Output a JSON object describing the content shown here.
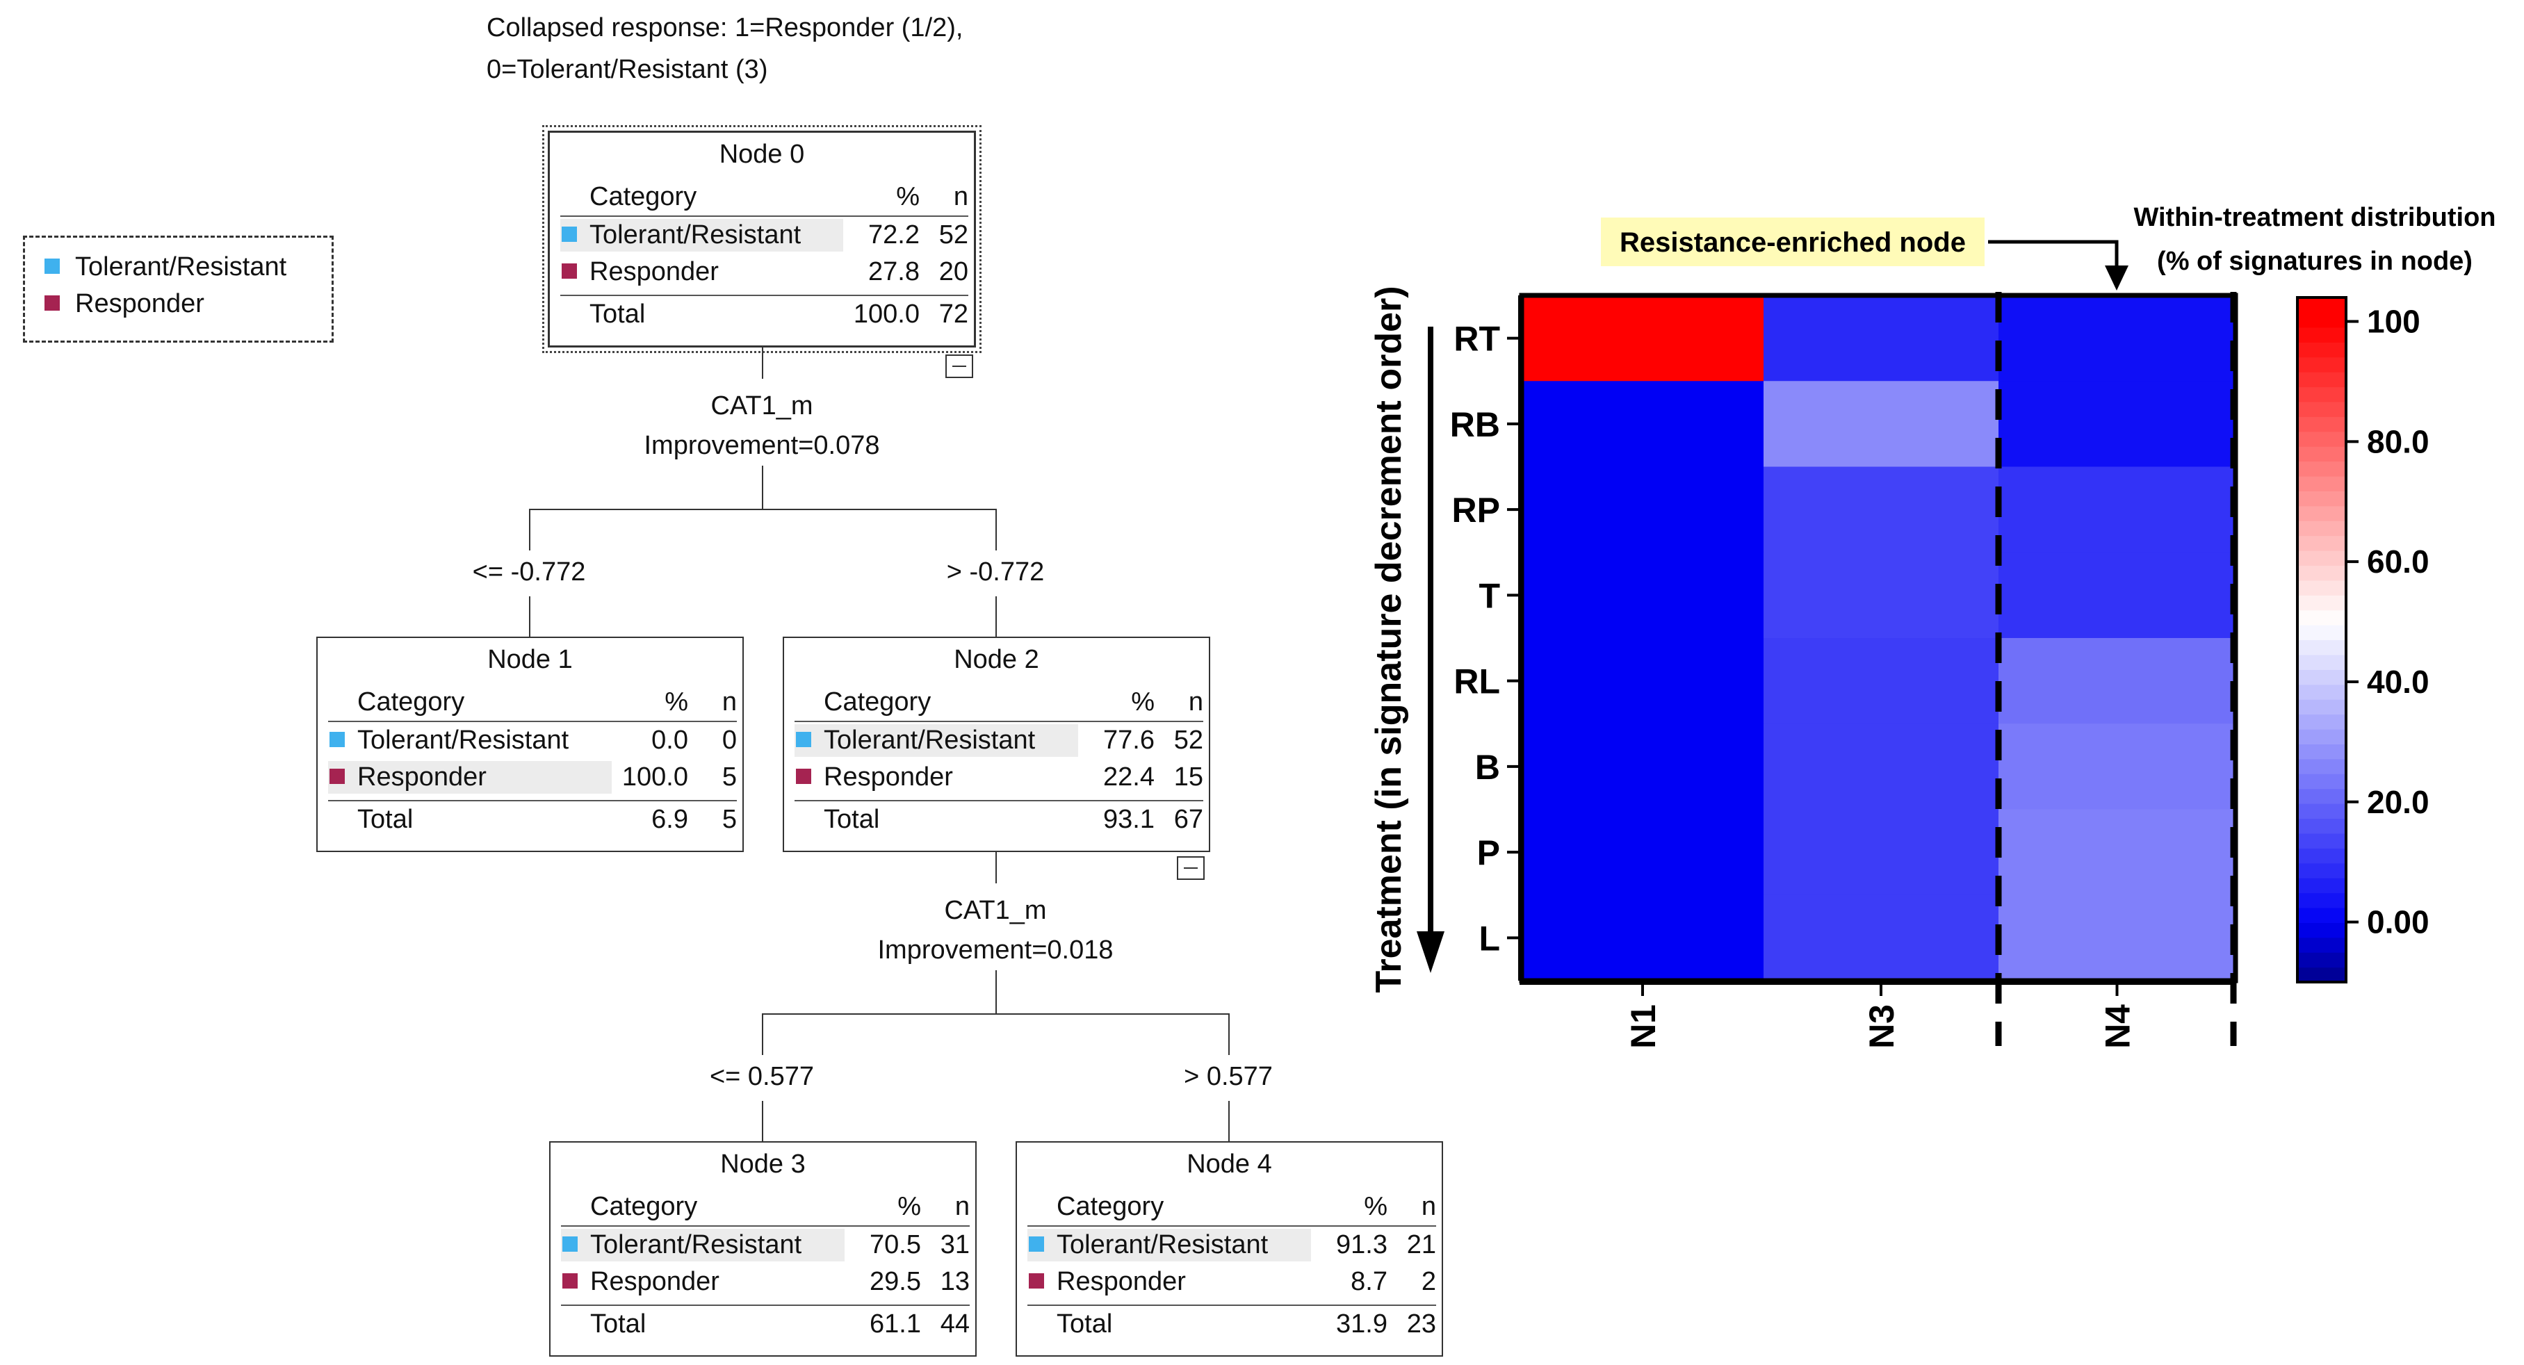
{
  "header": {
    "line1": "Collapsed response: 1=Responder (1/2),",
    "line2": "0=Tolerant/Resistant (3)"
  },
  "legend": {
    "items": [
      {
        "label": "Tolerant/Resistant",
        "color": "#3fb1ee"
      },
      {
        "label": "Responder",
        "color": "#a52351"
      }
    ]
  },
  "tree": {
    "column_headers": {
      "category": "Category",
      "pct": "%",
      "n": "n"
    },
    "nodes": [
      {
        "title": "Node 0",
        "rows": [
          {
            "label": "Tolerant/Resistant",
            "pct": "72.2",
            "n": "52"
          },
          {
            "label": "Responder",
            "pct": "27.8",
            "n": "20"
          },
          {
            "label": "Total",
            "pct": "100.0",
            "n": "72"
          }
        ]
      },
      {
        "title": "Node 1",
        "rows": [
          {
            "label": "Tolerant/Resistant",
            "pct": "0.0",
            "n": "0"
          },
          {
            "label": "Responder",
            "pct": "100.0",
            "n": "5"
          },
          {
            "label": "Total",
            "pct": "6.9",
            "n": "5"
          }
        ]
      },
      {
        "title": "Node 2",
        "rows": [
          {
            "label": "Tolerant/Resistant",
            "pct": "77.6",
            "n": "52"
          },
          {
            "label": "Responder",
            "pct": "22.4",
            "n": "15"
          },
          {
            "label": "Total",
            "pct": "93.1",
            "n": "67"
          }
        ]
      },
      {
        "title": "Node 3",
        "rows": [
          {
            "label": "Tolerant/Resistant",
            "pct": "70.5",
            "n": "31"
          },
          {
            "label": "Responder",
            "pct": "29.5",
            "n": "13"
          },
          {
            "label": "Total",
            "pct": "61.1",
            "n": "44"
          }
        ]
      },
      {
        "title": "Node 4",
        "rows": [
          {
            "label": "Tolerant/Resistant",
            "pct": "91.3",
            "n": "21"
          },
          {
            "label": "Responder",
            "pct": "8.7",
            "n": "2"
          },
          {
            "label": "Total",
            "pct": "31.9",
            "n": "23"
          }
        ]
      }
    ],
    "splits": [
      {
        "variable": "CAT1_m",
        "improvement": "Improvement=0.078",
        "left_condition": "<= -0.772",
        "right_condition": "> -0.772"
      },
      {
        "variable": "CAT1_m",
        "improvement": "Improvement=0.018",
        "left_condition": "<= 0.577",
        "right_condition": "> 0.577"
      }
    ]
  },
  "heatmap": {
    "annotation": "Resistance-enriched node",
    "colorbar_title_1": "Within-treatment distribution",
    "colorbar_title_2": "(% of signatures in node)",
    "ylabel": "Treatment (in signature decrement order)",
    "columns": [
      "N1",
      "N3",
      "N4"
    ],
    "rows": [
      "RT",
      "RB",
      "RP",
      "T",
      "RL",
      "B",
      "P",
      "L"
    ],
    "values": [
      [
        100,
        8,
        3
      ],
      [
        0,
        27,
        3
      ],
      [
        0,
        13,
        10
      ],
      [
        0,
        13,
        10
      ],
      [
        0,
        12,
        22
      ],
      [
        0,
        12,
        24
      ],
      [
        0,
        12,
        25
      ],
      [
        0,
        12,
        25
      ]
    ],
    "colorbar_ticks": [
      "100",
      "80.0",
      "60.0",
      "40.0",
      "20.0",
      "0.00"
    ],
    "colorbar_range": [
      -10,
      104
    ],
    "colors": {
      "low": "#0000f5",
      "mid": "#ffffff",
      "high": "#ff0000",
      "floor": "#00008b"
    }
  }
}
